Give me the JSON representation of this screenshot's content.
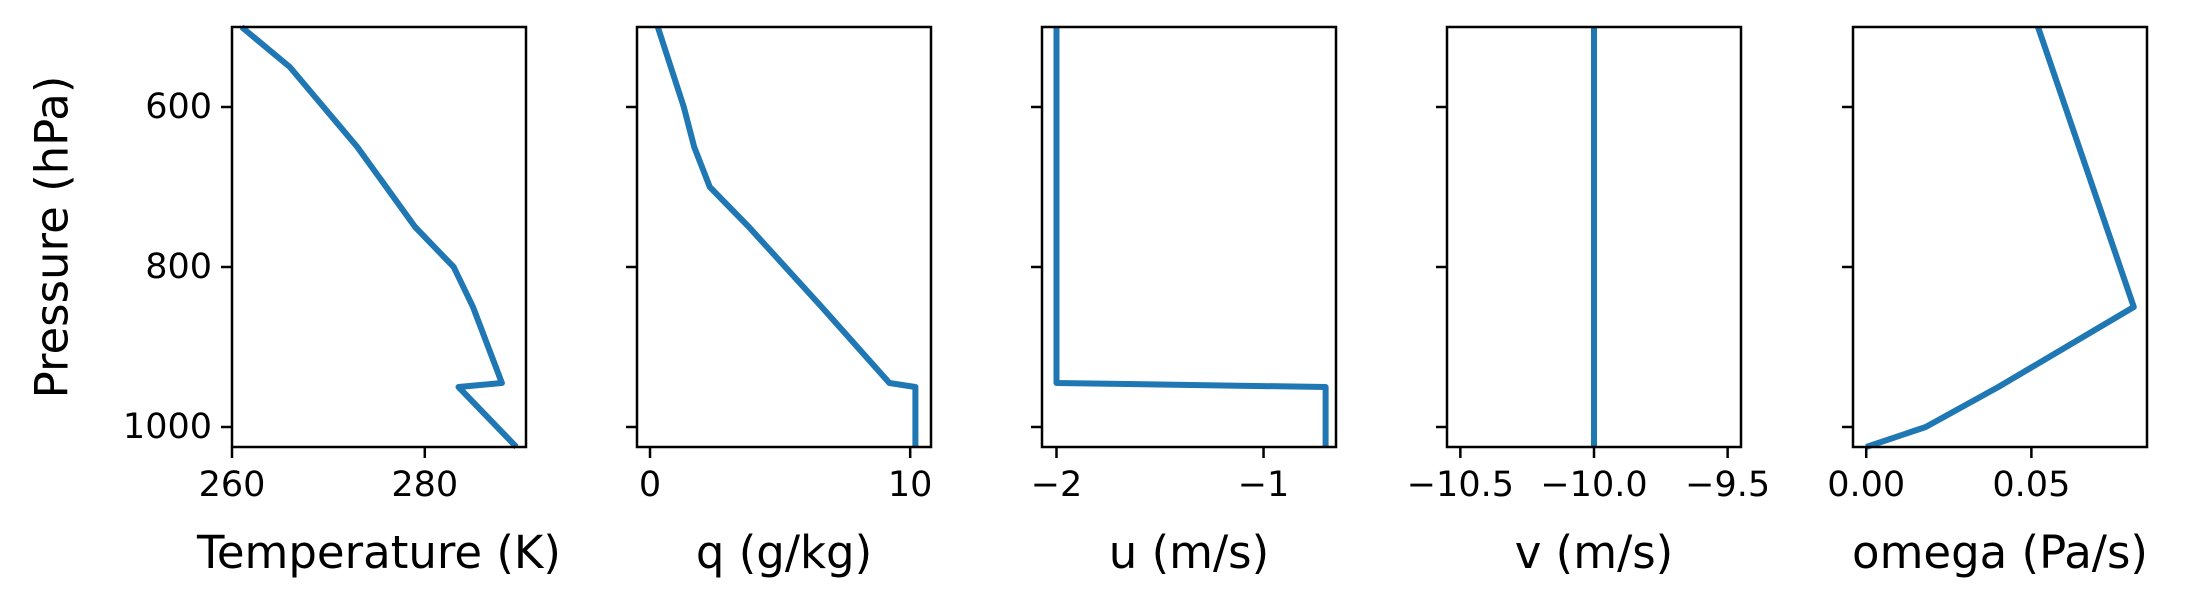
{
  "chart_data": [
    {
      "type": "line",
      "xlabel": "Temperature (K)",
      "ylabel": "Pressure (hPa)",
      "xlim": [
        260,
        290.5
      ],
      "ylim": [
        1025,
        500
      ],
      "xticks": [
        260,
        280
      ],
      "xtick_labels": [
        "260",
        "280"
      ],
      "yticks": [
        600,
        800,
        1000
      ],
      "ytick_labels": [
        "600",
        "800",
        "1000"
      ],
      "series": [
        {
          "x": [
            261,
            266,
            273,
            279,
            283,
            285,
            288,
            283.5,
            289.5
          ],
          "y": [
            500,
            550,
            650,
            750,
            800,
            850,
            945,
            950,
            1025
          ]
        }
      ]
    },
    {
      "type": "line",
      "xlabel": "q (g/kg)",
      "ylabel": "",
      "xlim": [
        -0.5,
        10.8
      ],
      "ylim": [
        1025,
        500
      ],
      "xticks": [
        0,
        10
      ],
      "xtick_labels": [
        "0",
        "10"
      ],
      "yticks": [
        600,
        800,
        1000
      ],
      "ytick_labels": [],
      "series": [
        {
          "x": [
            0.3,
            0.8,
            1.3,
            1.7,
            2.3,
            3.8,
            6.6,
            9.2,
            10.2,
            10.2
          ],
          "y": [
            500,
            550,
            600,
            650,
            700,
            750,
            850,
            945,
            950,
            1025
          ]
        }
      ]
    },
    {
      "type": "line",
      "xlabel": "u (m/s)",
      "ylabel": "",
      "xlim": [
        -2.07,
        -0.65
      ],
      "ylim": [
        1025,
        500
      ],
      "xticks": [
        -2,
        -1
      ],
      "xtick_labels": [
        "−2",
        "−1"
      ],
      "yticks": [
        600,
        800,
        1000
      ],
      "ytick_labels": [],
      "series": [
        {
          "x": [
            -2.0,
            -2.0,
            -0.7,
            -0.7
          ],
          "y": [
            500,
            945,
            950,
            1025
          ]
        }
      ]
    },
    {
      "type": "line",
      "xlabel": "v (m/s)",
      "ylabel": "",
      "xlim": [
        -10.55,
        -9.45
      ],
      "ylim": [
        1025,
        500
      ],
      "xticks": [
        -10.5,
        -10.0,
        -9.5
      ],
      "xtick_labels": [
        "−10.5",
        "−10.0",
        "−9.5"
      ],
      "yticks": [
        600,
        800,
        1000
      ],
      "ytick_labels": [],
      "series": [
        {
          "x": [
            -10.0,
            -10.0
          ],
          "y": [
            500,
            1025
          ]
        }
      ]
    },
    {
      "type": "line",
      "xlabel": "omega (Pa/s)",
      "ylabel": "",
      "xlim": [
        -0.004,
        0.085
      ],
      "ylim": [
        1025,
        500
      ],
      "xticks": [
        0.0,
        0.05
      ],
      "xtick_labels": [
        "0.00",
        "0.05"
      ],
      "yticks": [
        600,
        800,
        1000
      ],
      "ytick_labels": [],
      "series": [
        {
          "x": [
            0.052,
            0.081,
            0.04,
            0.018,
            0.0
          ],
          "y": [
            500,
            850,
            950,
            1000,
            1025
          ]
        }
      ]
    }
  ],
  "colors": {
    "line": "#1f77b4"
  }
}
